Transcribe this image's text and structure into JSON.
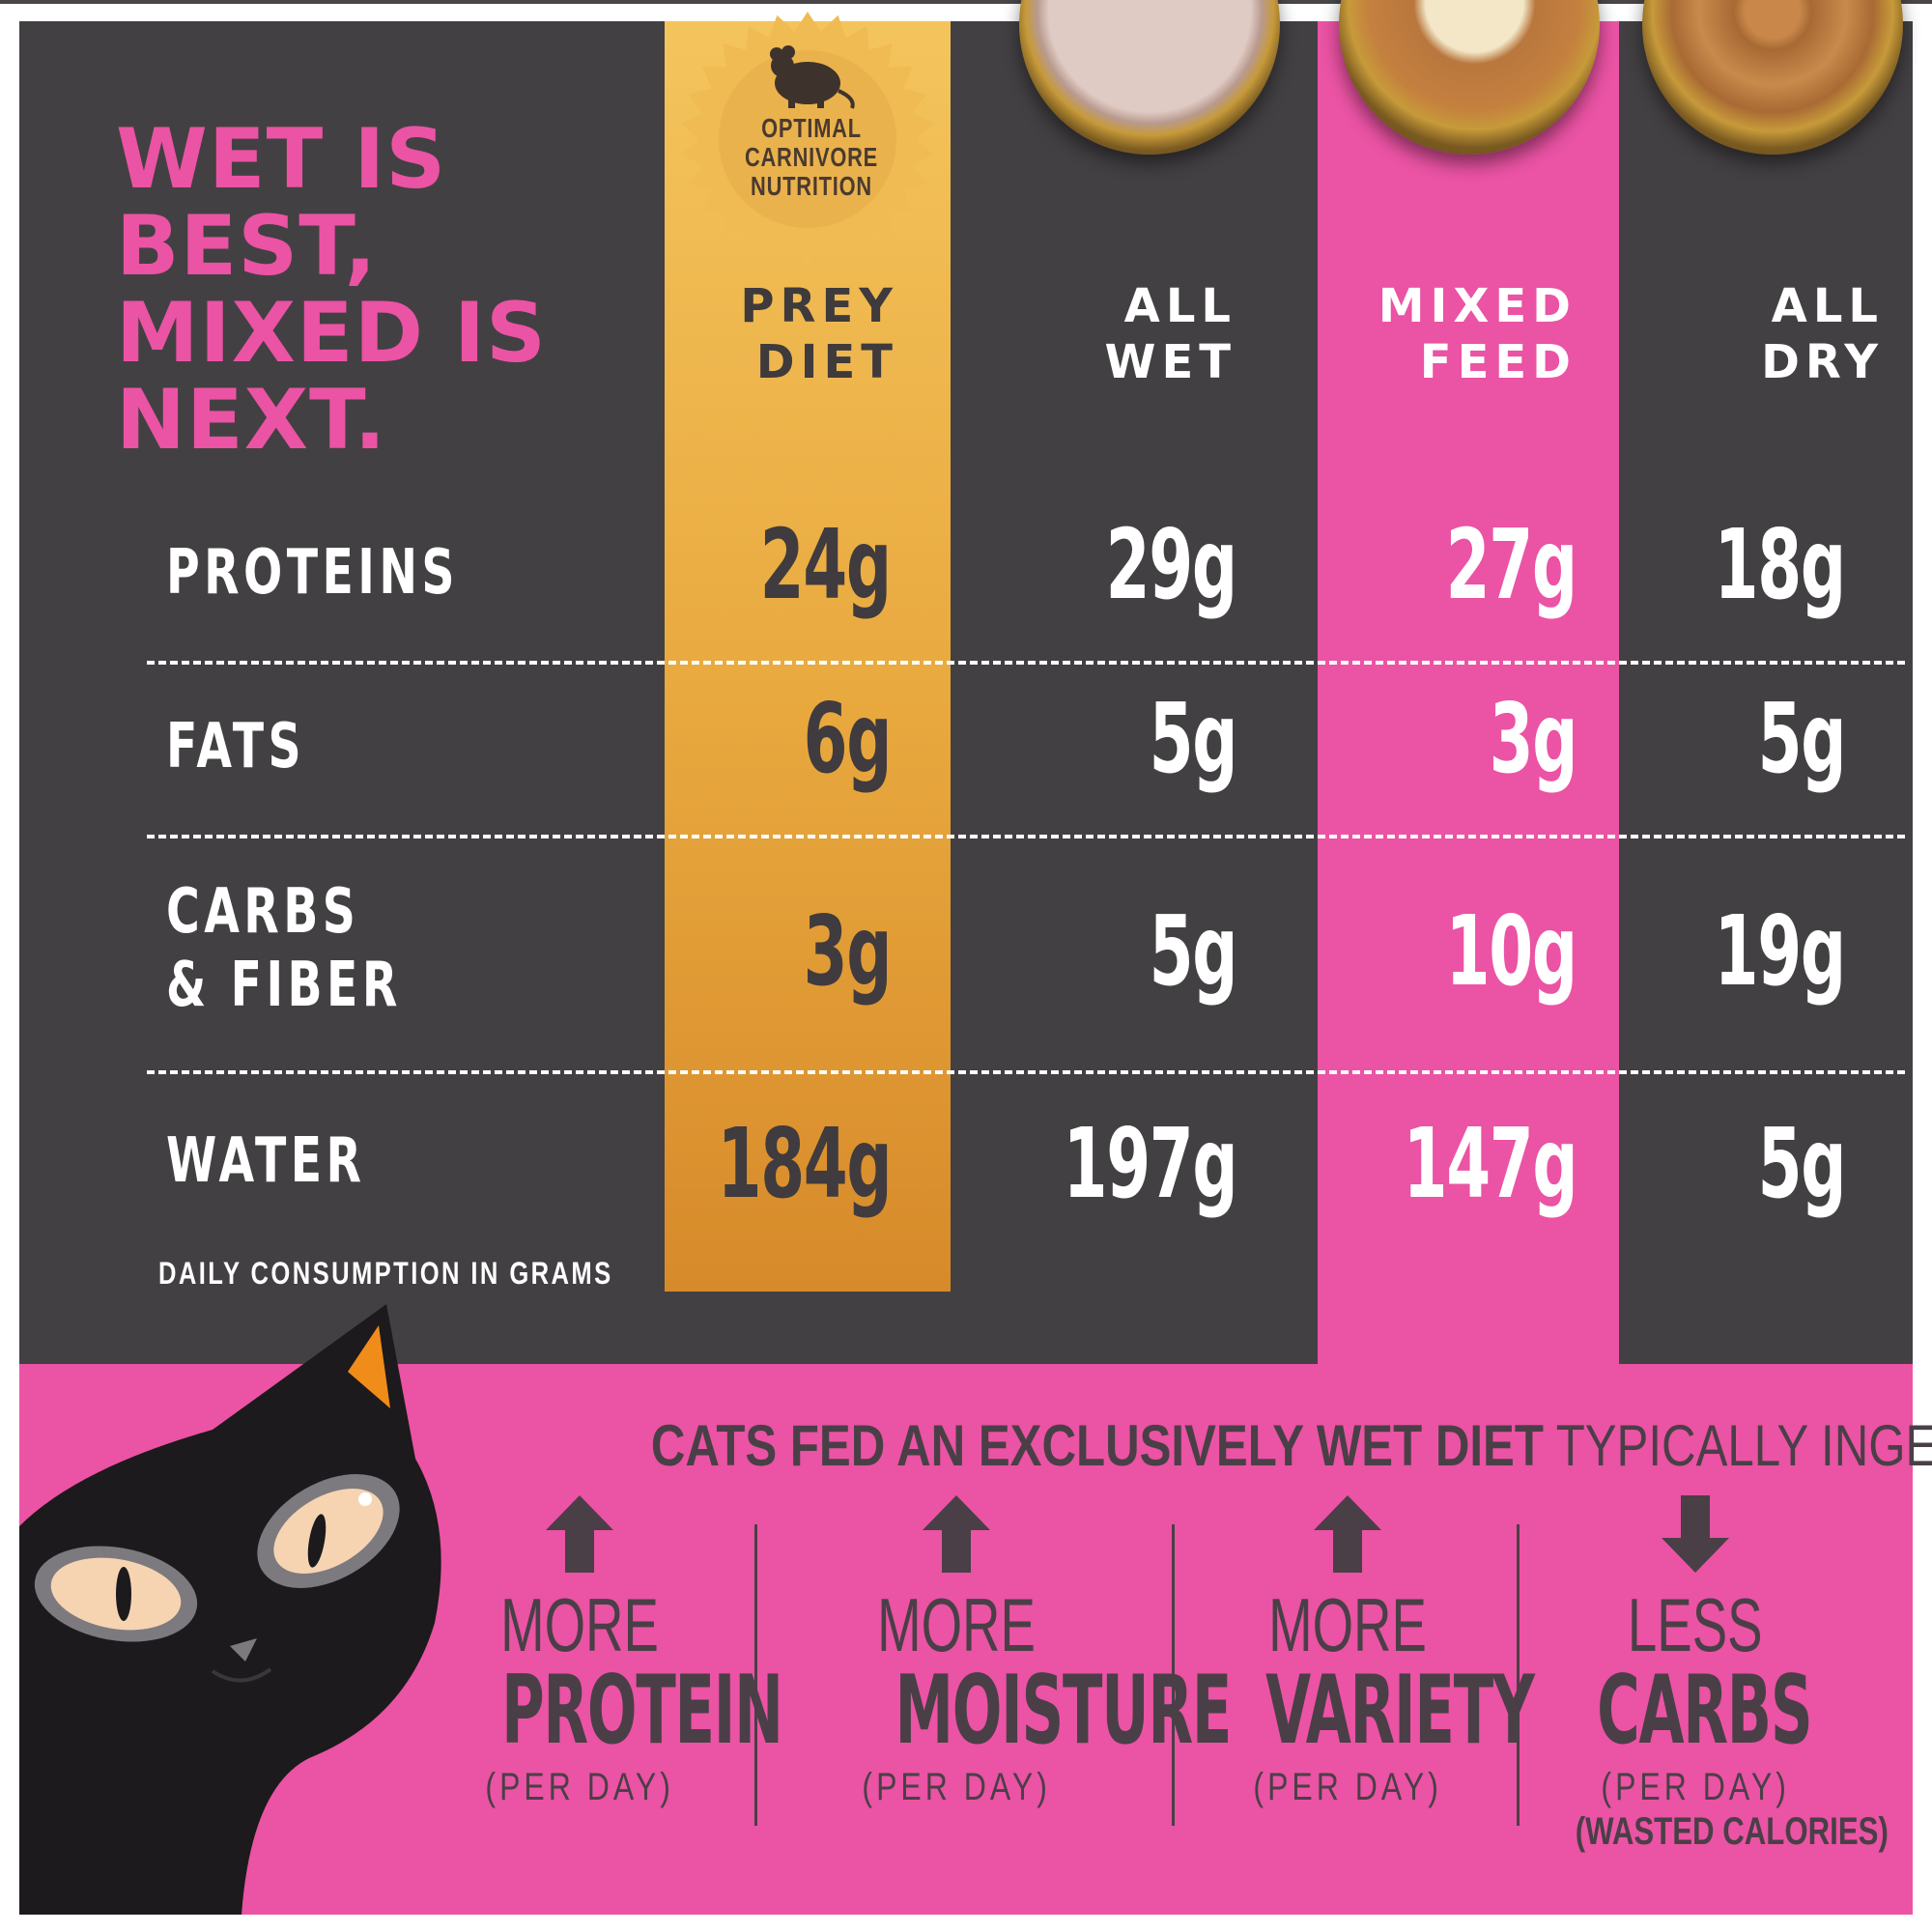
{
  "headline": "WET IS BEST, MIXED IS NEXT.",
  "badge": {
    "lines": [
      "OPTIMAL",
      "CARNIVORE",
      "NUTRITION"
    ],
    "icon": "mouse-icon"
  },
  "columns": [
    {
      "title_lines": [
        "PREY",
        "DIET"
      ],
      "highlight": "gold"
    },
    {
      "title_lines": [
        "ALL",
        "WET"
      ],
      "highlight": "none"
    },
    {
      "title_lines": [
        "MIXED",
        "FEED"
      ],
      "highlight": "pink"
    },
    {
      "title_lines": [
        "ALL",
        "DRY"
      ],
      "highlight": "none"
    }
  ],
  "rows": [
    {
      "label_lines": [
        "PROTEINS"
      ],
      "values": [
        "24g",
        "29g",
        "27g",
        "18g"
      ]
    },
    {
      "label_lines": [
        "FATS"
      ],
      "values": [
        "6g",
        "5g",
        "3g",
        "5g"
      ]
    },
    {
      "label_lines": [
        "CARBS",
        "& FIBER"
      ],
      "values": [
        "3g",
        "5g",
        "10g",
        "19g"
      ]
    },
    {
      "label_lines": [
        "WATER"
      ],
      "values": [
        "184g",
        "197g",
        "147g",
        "5g"
      ]
    }
  ],
  "footnote": "DAILY CONSUMPTION IN GRAMS",
  "bottom": {
    "title_bold": "CATS FED AN EXCLUSIVELY WET DIET",
    "title_rest": " TYPICALLY INGEST:",
    "benefits": [
      {
        "arrow": "up-arrow-icon",
        "small": "MORE",
        "big": "PROTEIN",
        "per": "(PER DAY)",
        "note": ""
      },
      {
        "arrow": "up-arrow-icon",
        "small": "MORE",
        "big": "MOISTURE",
        "per": "(PER DAY)",
        "note": ""
      },
      {
        "arrow": "up-arrow-icon",
        "small": "MORE",
        "big": "VARIETY",
        "per": "(PER DAY)",
        "note": ""
      },
      {
        "arrow": "down-arrow-icon",
        "small": "LESS",
        "big": "CARBS",
        "per": "(PER DAY)",
        "note": "(WASTED CALORIES)"
      }
    ]
  },
  "colors": {
    "dark": "#434043",
    "pink": "#eb53a4",
    "gold": "#e8a83e",
    "text_dark": "#4a3f47",
    "white": "#ffffff"
  }
}
